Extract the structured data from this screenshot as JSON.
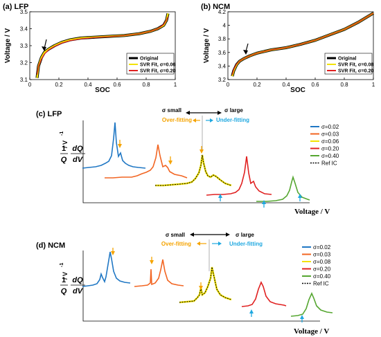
{
  "chart_data": [
    {
      "panel_label": "(a) LFP",
      "type": "line",
      "xlabel": "SOC",
      "ylabel": "Voltage / V",
      "xlim": [
        0,
        1
      ],
      "ylim": [
        3.1,
        3.5
      ],
      "xticks": [
        "0",
        "0.2",
        "0.4",
        "0.6",
        "0.8",
        "1"
      ],
      "yticks": [
        "3.1",
        "3.2",
        "3.3",
        "3.4",
        "3.5"
      ],
      "legend_position": "bottom-right",
      "annotation": "arrow at SOC ≈ 0.1",
      "series": [
        {
          "name": "Original",
          "color": "#000000",
          "x": [
            0.05,
            0.06,
            0.08,
            0.1,
            0.13,
            0.17,
            0.22,
            0.28,
            0.35,
            0.45,
            0.55,
            0.65,
            0.75,
            0.83,
            0.88,
            0.92,
            0.94,
            0.95
          ],
          "y": [
            3.11,
            3.18,
            3.23,
            3.26,
            3.28,
            3.3,
            3.32,
            3.335,
            3.345,
            3.35,
            3.355,
            3.36,
            3.37,
            3.385,
            3.4,
            3.42,
            3.45,
            3.49
          ]
        },
        {
          "name": "SVR Fit, σ=0.06",
          "color": "#f2e200",
          "x": [
            0.05,
            0.06,
            0.08,
            0.1,
            0.13,
            0.17,
            0.22,
            0.28,
            0.35,
            0.45,
            0.55,
            0.65,
            0.75,
            0.83,
            0.88,
            0.92,
            0.94,
            0.95
          ],
          "y": [
            3.11,
            3.18,
            3.23,
            3.26,
            3.28,
            3.3,
            3.32,
            3.335,
            3.345,
            3.35,
            3.355,
            3.36,
            3.37,
            3.385,
            3.4,
            3.42,
            3.45,
            3.49
          ]
        },
        {
          "name": "SVR Fit, σ=0.20",
          "color": "#e02020",
          "x": [
            0.05,
            0.06,
            0.08,
            0.1,
            0.13,
            0.17,
            0.22,
            0.28,
            0.35,
            0.45,
            0.55,
            0.65,
            0.75,
            0.83,
            0.88,
            0.92,
            0.94,
            0.95
          ],
          "y": [
            3.13,
            3.18,
            3.22,
            3.25,
            3.275,
            3.295,
            3.315,
            3.33,
            3.34,
            3.348,
            3.354,
            3.36,
            3.37,
            3.385,
            3.4,
            3.425,
            3.45,
            3.47
          ]
        }
      ]
    },
    {
      "panel_label": "(b) NCM",
      "type": "line",
      "xlabel": "SOC",
      "ylabel": "Voltage / V",
      "xlim": [
        0,
        1
      ],
      "ylim": [
        3.2,
        4.2
      ],
      "xticks": [
        "0",
        "0.2",
        "0.4",
        "0.6",
        "0.8",
        "1"
      ],
      "yticks": [
        "3.2",
        "3.4",
        "3.6",
        "3.8",
        "4",
        "4.2"
      ],
      "legend_position": "bottom-right",
      "annotation": "arrow at SOC ≈ 0.08",
      "series": [
        {
          "name": "Original",
          "color": "#000000",
          "x": [
            0.03,
            0.04,
            0.06,
            0.08,
            0.11,
            0.15,
            0.2,
            0.3,
            0.4,
            0.5,
            0.6,
            0.7,
            0.8,
            0.9,
            1.0
          ],
          "y": [
            3.25,
            3.33,
            3.42,
            3.47,
            3.51,
            3.55,
            3.59,
            3.64,
            3.67,
            3.72,
            3.78,
            3.86,
            3.94,
            4.05,
            4.18
          ]
        },
        {
          "name": "SVR Fit, σ=0.08",
          "color": "#f2e200",
          "x": [
            0.03,
            0.04,
            0.06,
            0.08,
            0.11,
            0.15,
            0.2,
            0.3,
            0.4,
            0.5,
            0.6,
            0.7,
            0.8,
            0.9,
            1.0
          ],
          "y": [
            3.25,
            3.33,
            3.42,
            3.47,
            3.51,
            3.55,
            3.59,
            3.64,
            3.67,
            3.72,
            3.78,
            3.86,
            3.94,
            4.05,
            4.18
          ]
        },
        {
          "name": "SVR Fit, σ=0.20",
          "color": "#e02020",
          "x": [
            0.03,
            0.04,
            0.06,
            0.08,
            0.11,
            0.15,
            0.2,
            0.3,
            0.4,
            0.5,
            0.6,
            0.7,
            0.8,
            0.9,
            1.0
          ],
          "y": [
            3.27,
            3.35,
            3.43,
            3.47,
            3.51,
            3.55,
            3.59,
            3.64,
            3.67,
            3.72,
            3.78,
            3.86,
            3.94,
            4.05,
            4.18
          ]
        }
      ]
    },
    {
      "panel_label": "(c) LFP",
      "type": "line",
      "xlabel": "Voltage / V",
      "ylabel_parts": {
        "frac1_num": "1",
        "frac1_den": "Q",
        "frac2_num": "dQ",
        "frac2_den": "dV",
        "unit": "/ V",
        "unit_exp": "-1"
      },
      "legend_position": "right",
      "annotation_left": "σ small",
      "annotation_right": "σ large",
      "annotation_left_sub": "Over-fitting",
      "annotation_right_sub": "Under-fitting",
      "series_legend": [
        {
          "name": "σ=0.02",
          "color": "#1f77c4"
        },
        {
          "name": "σ=0.03",
          "color": "#f26522"
        },
        {
          "name": "σ=0.06",
          "color": "#f2e200"
        },
        {
          "name": "σ=0.20",
          "color": "#e02020"
        },
        {
          "name": "σ=0.40",
          "color": "#55a630"
        },
        {
          "name": "Ref IC",
          "color": "#000000"
        }
      ]
    },
    {
      "panel_label": "(d) NCM",
      "type": "line",
      "xlabel": "Voltage / V",
      "ylabel_parts": {
        "frac1_num": "1",
        "frac1_den": "Q",
        "frac2_num": "dQ",
        "frac2_den": "dV",
        "unit": "/ V",
        "unit_exp": "-1"
      },
      "legend_position": "right",
      "annotation_left": "σ small",
      "annotation_right": "σ large",
      "annotation_left_sub": "Over-fitting",
      "annotation_right_sub": "Under-fitting",
      "series_legend": [
        {
          "name": "σ=0.02",
          "color": "#1f77c4"
        },
        {
          "name": "σ=0.03",
          "color": "#f26522"
        },
        {
          "name": "σ=0.08",
          "color": "#f2e200"
        },
        {
          "name": "σ=0.20",
          "color": "#e02020"
        },
        {
          "name": "σ=0.40",
          "color": "#55a630"
        },
        {
          "name": "Ref IC",
          "color": "#000000"
        }
      ]
    }
  ]
}
